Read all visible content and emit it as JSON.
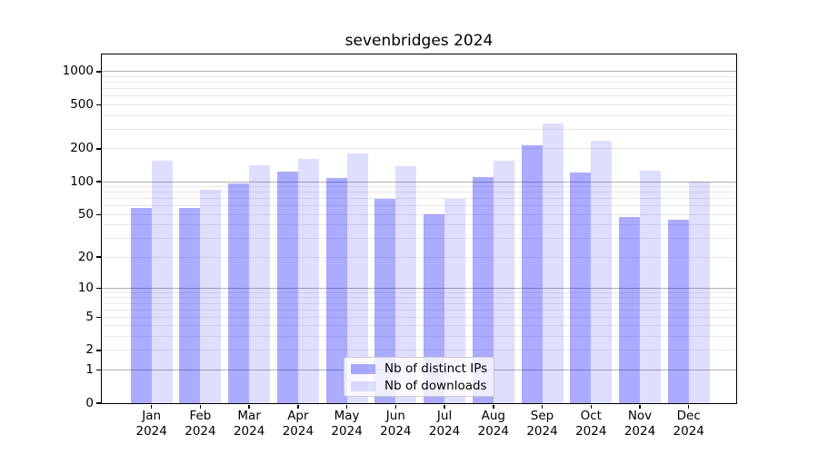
{
  "title": "sevenbridges 2024",
  "chart_data": {
    "type": "bar",
    "title": "sevenbridges 2024",
    "x_year": "2024",
    "categories": [
      "Jan",
      "Feb",
      "Mar",
      "Apr",
      "May",
      "Jun",
      "Jul",
      "Aug",
      "Sep",
      "Oct",
      "Nov",
      "Dec"
    ],
    "series": [
      {
        "name": "Nb of distinct IPs",
        "key": "distinct-ips",
        "color": "rgba(0,0,255,0.33)",
        "color_hex_on_white": "#ababfa",
        "values": [
          57,
          57,
          96,
          123,
          108,
          70,
          50,
          110,
          215,
          121,
          47,
          45
        ]
      },
      {
        "name": "Nb of downloads",
        "key": "downloads",
        "color": "rgba(0,0,255,0.13)",
        "color_hex_on_white": "#dedefc",
        "values": [
          156,
          85,
          142,
          163,
          182,
          138,
          70,
          157,
          340,
          238,
          126,
          101
        ]
      }
    ],
    "y_ticks": [
      0,
      1,
      2,
      5,
      10,
      20,
      50,
      100,
      200,
      500,
      1000
    ],
    "y_scale": "log1p",
    "ylim": [
      0,
      1433
    ],
    "grid": true,
    "grid_major_color": "#b0b0b0",
    "grid_minor_color": "#e8e8e8",
    "legend_position": "lower center inside"
  }
}
